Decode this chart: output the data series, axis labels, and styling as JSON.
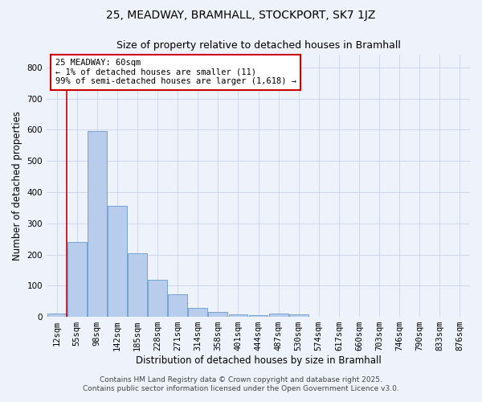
{
  "title": "25, MEADWAY, BRAMHALL, STOCKPORT, SK7 1JZ",
  "subtitle": "Size of property relative to detached houses in Bramhall",
  "xlabel": "Distribution of detached houses by size in Bramhall",
  "ylabel": "Number of detached properties",
  "footer1": "Contains HM Land Registry data © Crown copyright and database right 2025.",
  "footer2": "Contains public sector information licensed under the Open Government Licence v3.0.",
  "bar_labels": [
    "12sqm",
    "55sqm",
    "98sqm",
    "142sqm",
    "185sqm",
    "228sqm",
    "271sqm",
    "314sqm",
    "358sqm",
    "401sqm",
    "444sqm",
    "487sqm",
    "530sqm",
    "574sqm",
    "617sqm",
    "660sqm",
    "703sqm",
    "746sqm",
    "790sqm",
    "833sqm",
    "876sqm"
  ],
  "bar_values": [
    10,
    240,
    595,
    355,
    205,
    118,
    72,
    28,
    15,
    8,
    5,
    10,
    8,
    0,
    0,
    0,
    0,
    0,
    0,
    0,
    0
  ],
  "bar_color": "#b8ccec",
  "bar_edge_color": "#6699cc",
  "ylim": [
    0,
    840
  ],
  "yticks": [
    0,
    100,
    200,
    300,
    400,
    500,
    600,
    700,
    800
  ],
  "red_line_index": 1,
  "annotation_text": "25 MEADWAY: 60sqm\n← 1% of detached houses are smaller (11)\n99% of semi-detached houses are larger (1,618) →",
  "bg_color": "#eef2fa",
  "grid_color": "#c8d4e8",
  "title_fontsize": 10,
  "subtitle_fontsize": 9,
  "axis_label_fontsize": 8.5,
  "tick_fontsize": 7.5,
  "footer_fontsize": 6.5,
  "annotation_fontsize": 7.5
}
